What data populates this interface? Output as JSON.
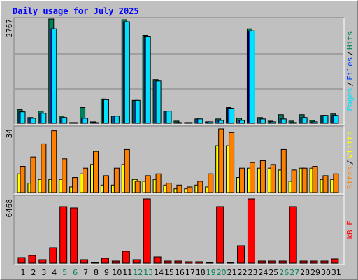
{
  "title": "Daily usage for July 2025",
  "separator": "/",
  "categories": [
    "1",
    "2",
    "3",
    "4",
    "5",
    "6",
    "7",
    "8",
    "9",
    "10",
    "11",
    "12",
    "13",
    "14",
    "15",
    "16",
    "17",
    "18",
    "19",
    "20",
    "21",
    "22",
    "23",
    "24",
    "25",
    "26",
    "27",
    "28",
    "29",
    "30",
    "31"
  ],
  "category_colors": [
    "#000000",
    "#000000",
    "#000000",
    "#000000",
    "#00805c",
    "#00805c",
    "#000000",
    "#000000",
    "#000000",
    "#000000",
    "#000000",
    "#00805c",
    "#00805c",
    "#000000",
    "#000000",
    "#000000",
    "#000000",
    "#000000",
    "#00805c",
    "#00805c",
    "#000000",
    "#000000",
    "#000000",
    "#000000",
    "#000000",
    "#00805c",
    "#00805c",
    "#000000",
    "#000000",
    "#000000",
    "#000000"
  ],
  "chart_data": [
    {
      "type": "bar",
      "ylim": [
        0,
        2767
      ],
      "yticks": [
        2767
      ],
      "series": [
        {
          "name": "Hits",
          "color": "#00805c",
          "values": [
            360,
            152,
            322,
            2767,
            190,
            19,
            417,
            38,
            644,
            190,
            2748,
            606,
            2331,
            1156,
            322,
            57,
            19,
            114,
            38,
            114,
            417,
            133,
            2502,
            152,
            57,
            227,
            57,
            227,
            76,
            208,
            246
          ]
        },
        {
          "name": "Files",
          "color": "#0040ff",
          "values": [
            303,
            133,
            265,
            2502,
            152,
            19,
            133,
            19,
            625,
            190,
            2691,
            606,
            2293,
            1118,
            322,
            19,
            19,
            114,
            38,
            76,
            398,
            76,
            2445,
            114,
            38,
            114,
            19,
            152,
            38,
            208,
            208
          ]
        },
        {
          "name": "Pages",
          "color": "#00e0ff",
          "values": [
            303,
            133,
            265,
            2502,
            152,
            19,
            133,
            19,
            625,
            190,
            2691,
            606,
            2293,
            1118,
            322,
            19,
            19,
            114,
            38,
            76,
            398,
            76,
            2445,
            114,
            38,
            114,
            19,
            152,
            38,
            208,
            208
          ]
        }
      ]
    },
    {
      "type": "bar",
      "ylim": [
        0,
        34
      ],
      "yticks": [
        34
      ],
      "series": [
        {
          "name": "Visits",
          "color": "#ffff00",
          "values": [
            10,
            5,
            7,
            7,
            7,
            3,
            10,
            15,
            4,
            4,
            15,
            7,
            6,
            7,
            4,
            2,
            2,
            4,
            3,
            25,
            25,
            8,
            13,
            13,
            13,
            12,
            6,
            13,
            13,
            7,
            7
          ]
        },
        {
          "name": "Sites",
          "color": "#ff8000",
          "values": [
            14,
            19,
            26,
            33,
            18,
            8,
            13,
            22,
            9,
            13,
            23,
            6,
            9,
            10,
            5,
            4,
            3,
            6,
            10,
            34,
            32,
            13,
            16,
            17,
            15,
            23,
            12,
            13,
            14,
            9,
            10
          ]
        }
      ]
    },
    {
      "type": "bar",
      "ylim": [
        0,
        6468
      ],
      "yticks": [
        6468
      ],
      "series": [
        {
          "name": "kB F",
          "color": "#ff0000",
          "values": [
            562,
            773,
            352,
            1547,
            5695,
            5554,
            352,
            70,
            492,
            211,
            1195,
            352,
            6468,
            633,
            211,
            211,
            141,
            141,
            70,
            5695,
            70,
            1758,
            6468,
            211,
            211,
            211,
            5695,
            211,
            211,
            211,
            422
          ]
        }
      ]
    }
  ]
}
